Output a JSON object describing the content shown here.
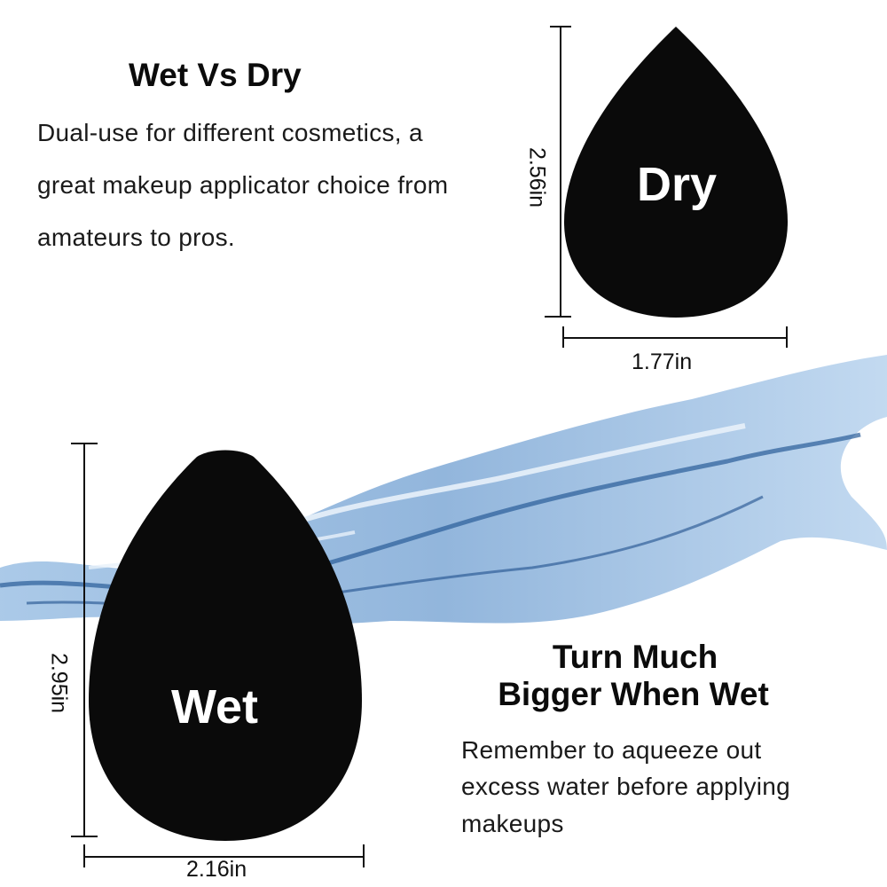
{
  "top": {
    "title": "Wet Vs Dry",
    "description_lines": [
      "Dual-use for different cosmetics, a",
      "great makeup applicator choice from",
      "amateurs to pros."
    ]
  },
  "dry_sponge": {
    "label": "Dry",
    "height_label": "2.56in",
    "width_label": "1.77in",
    "color": "#0a0a0a"
  },
  "wet_sponge": {
    "label": "Wet",
    "height_label": "2.95in",
    "width_label": "2.16in",
    "color": "#0a0a0a"
  },
  "bottom": {
    "title_lines": [
      "Turn Much",
      "Bigger When Wet"
    ],
    "description_lines": [
      "Remember to aqueeze out",
      "excess water before applying",
      "makeups"
    ]
  },
  "colors": {
    "water": "#5b8fc7",
    "water_light": "#cfe2f3",
    "water_dark": "#1e4f8c"
  }
}
